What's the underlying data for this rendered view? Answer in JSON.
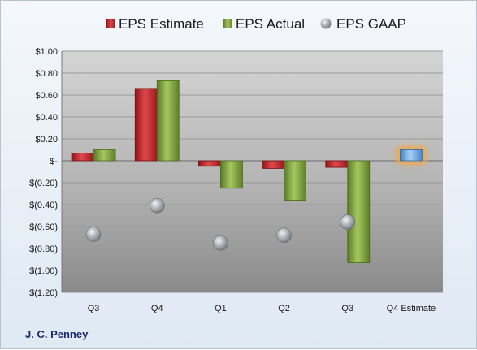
{
  "company": "J. C. Penney",
  "chart_data": {
    "type": "bar",
    "categories": [
      "Q3",
      "Q4",
      "Q1",
      "Q2",
      "Q3",
      "Q4 Estimate"
    ],
    "series": [
      {
        "name": "EPS Estimate",
        "kind": "bar",
        "color": "#c0282d",
        "values": [
          0.07,
          0.66,
          -0.05,
          -0.07,
          -0.06,
          null
        ]
      },
      {
        "name": "EPS Actual",
        "kind": "bar",
        "color": "#7ea13c",
        "values": [
          0.1,
          0.73,
          -0.25,
          -0.36,
          -0.93,
          null
        ]
      },
      {
        "name": "EPS GAAP",
        "kind": "point",
        "color": "#b0b4b8",
        "values": [
          -0.67,
          -0.41,
          -0.75,
          -0.68,
          -0.56,
          null
        ]
      },
      {
        "name": "",
        "kind": "bar-highlight",
        "color": "#5b9bd5",
        "values": [
          null,
          null,
          null,
          null,
          null,
          0.1
        ]
      }
    ],
    "ylim": [
      -1.2,
      1.0
    ],
    "yticks": [
      1.0,
      0.8,
      0.6,
      0.4,
      0.2,
      0,
      -0.2,
      -0.4,
      -0.6,
      -0.8,
      -1.0,
      -1.2
    ],
    "ytick_labels": [
      "$1.00",
      "$0.80",
      "$0.60",
      "$0.40",
      "$0.20",
      "$-",
      "$(0.20)",
      "$(0.40)",
      "$(0.60)",
      "$(0.80)",
      "$(1.00)",
      "$(1.20)"
    ],
    "legend": {
      "position": "top",
      "labels": [
        "EPS Estimate",
        "EPS Actual",
        "EPS GAAP"
      ]
    },
    "grid": true,
    "xlabel": "",
    "ylabel": ""
  }
}
